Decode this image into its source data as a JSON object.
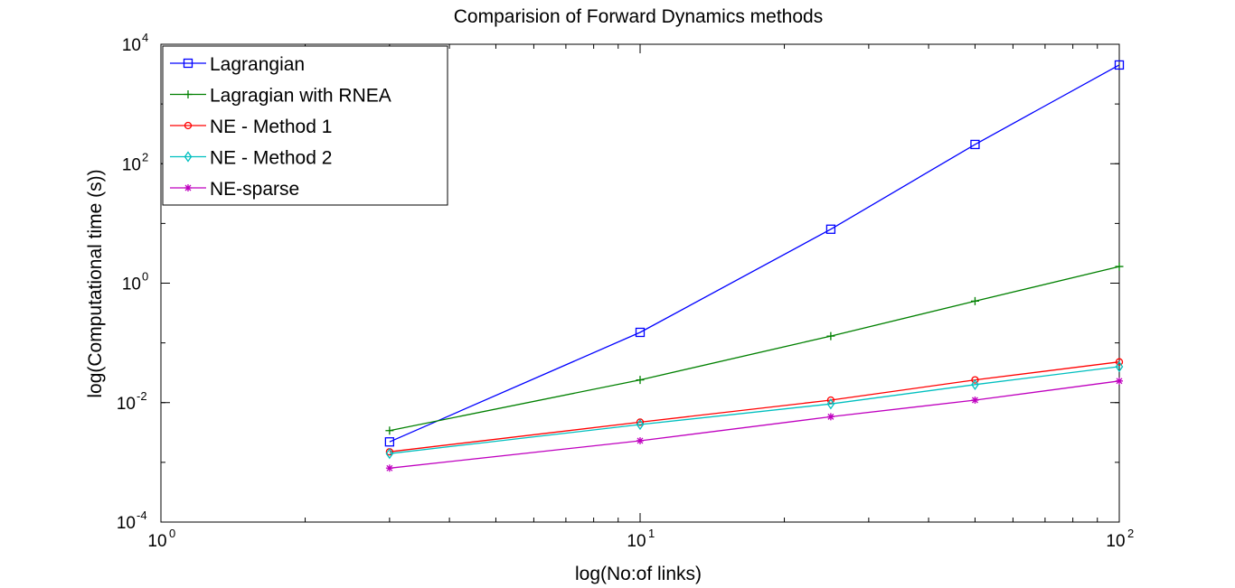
{
  "chart_data": {
    "type": "line",
    "title": "Comparision of Forward Dynamics methods",
    "xlabel": "log(No:of links)",
    "ylabel": "log(Computational time (s))",
    "x_scale": "log",
    "y_scale": "log",
    "xlim": [
      1,
      100
    ],
    "ylim": [
      0.0001,
      10000
    ],
    "x_ticks": [
      {
        "value": 1,
        "base": "10",
        "exp": "0"
      },
      {
        "value": 10,
        "base": "10",
        "exp": "1"
      },
      {
        "value": 100,
        "base": "10",
        "exp": "2"
      }
    ],
    "y_ticks": [
      {
        "value": 0.0001,
        "base": "10",
        "exp": "-4"
      },
      {
        "value": 0.01,
        "base": "10",
        "exp": "-2"
      },
      {
        "value": 1,
        "base": "10",
        "exp": "0"
      },
      {
        "value": 100,
        "base": "10",
        "exp": "2"
      },
      {
        "value": 10000,
        "base": "10",
        "exp": "4"
      }
    ],
    "grid": false,
    "legend_position": "top-left",
    "x": [
      3,
      10,
      25,
      50,
      100
    ],
    "series": [
      {
        "name": "Lagrangian",
        "color": "#0000ff",
        "marker": "square",
        "values": [
          0.0022,
          0.15,
          8.0,
          210,
          4500
        ]
      },
      {
        "name": "Lagragian with RNEA",
        "color": "#008000",
        "marker": "plus",
        "values": [
          0.0034,
          0.024,
          0.13,
          0.5,
          1.9
        ]
      },
      {
        "name": "NE - Method 1",
        "color": "#ff0000",
        "marker": "circle",
        "values": [
          0.0015,
          0.0047,
          0.011,
          0.024,
          0.048
        ]
      },
      {
        "name": "NE - Method 2",
        "color": "#00bfbf",
        "marker": "diamond",
        "values": [
          0.0014,
          0.0043,
          0.0095,
          0.02,
          0.04
        ]
      },
      {
        "name": "NE-sparse",
        "color": "#bf00bf",
        "marker": "star",
        "values": [
          0.0008,
          0.0023,
          0.0058,
          0.011,
          0.023
        ]
      }
    ]
  }
}
